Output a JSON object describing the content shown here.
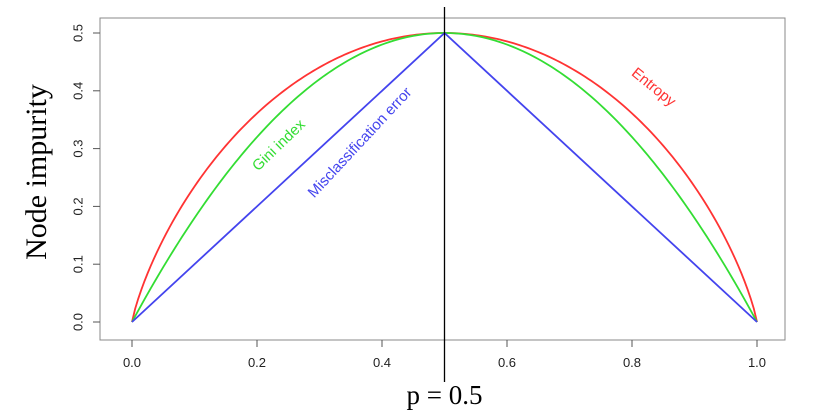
{
  "chart_data": {
    "type": "line",
    "xlabel": "",
    "ylabel": "Node impurity",
    "xlim": [
      0,
      1
    ],
    "ylim": [
      0,
      0.5
    ],
    "x_ticks": [
      "0.0",
      "0.2",
      "0.4",
      "0.6",
      "0.8",
      "1.0"
    ],
    "y_ticks": [
      "0.0",
      "0.1",
      "0.2",
      "0.3",
      "0.4",
      "0.5"
    ],
    "grid": false,
    "series": [
      {
        "name": "Entropy",
        "color": "#ff3333",
        "x": [
          0.0,
          0.05,
          0.1,
          0.2,
          0.3,
          0.4,
          0.5,
          0.6,
          0.7,
          0.8,
          0.9,
          0.95,
          1.0
        ],
        "values": [
          0.0,
          0.143,
          0.234,
          0.361,
          0.441,
          0.485,
          0.5,
          0.485,
          0.441,
          0.361,
          0.234,
          0.143,
          0.0
        ]
      },
      {
        "name": "Gini index",
        "color": "#33dd33",
        "x": [
          0.0,
          0.05,
          0.1,
          0.2,
          0.3,
          0.4,
          0.5,
          0.6,
          0.7,
          0.8,
          0.9,
          0.95,
          1.0
        ],
        "values": [
          0.0,
          0.095,
          0.18,
          0.32,
          0.42,
          0.48,
          0.5,
          0.48,
          0.42,
          0.32,
          0.18,
          0.095,
          0.0
        ]
      },
      {
        "name": "Misclassification error",
        "color": "#4444ee",
        "x": [
          0.0,
          0.5,
          1.0
        ],
        "values": [
          0.0,
          0.5,
          0.0
        ]
      }
    ],
    "annotations": [
      {
        "text": "Entropy",
        "x": 0.83,
        "y": 0.4,
        "angle": 39,
        "color": "#ff3333"
      },
      {
        "text": "Gini index",
        "x": 0.24,
        "y": 0.3,
        "angle": -44,
        "color": "#33dd33"
      },
      {
        "text": "Misclassification error",
        "x": 0.37,
        "y": 0.305,
        "angle": -47,
        "color": "#4444ee"
      }
    ],
    "vline": {
      "x": 0.5,
      "label": "p = 0.5"
    }
  }
}
